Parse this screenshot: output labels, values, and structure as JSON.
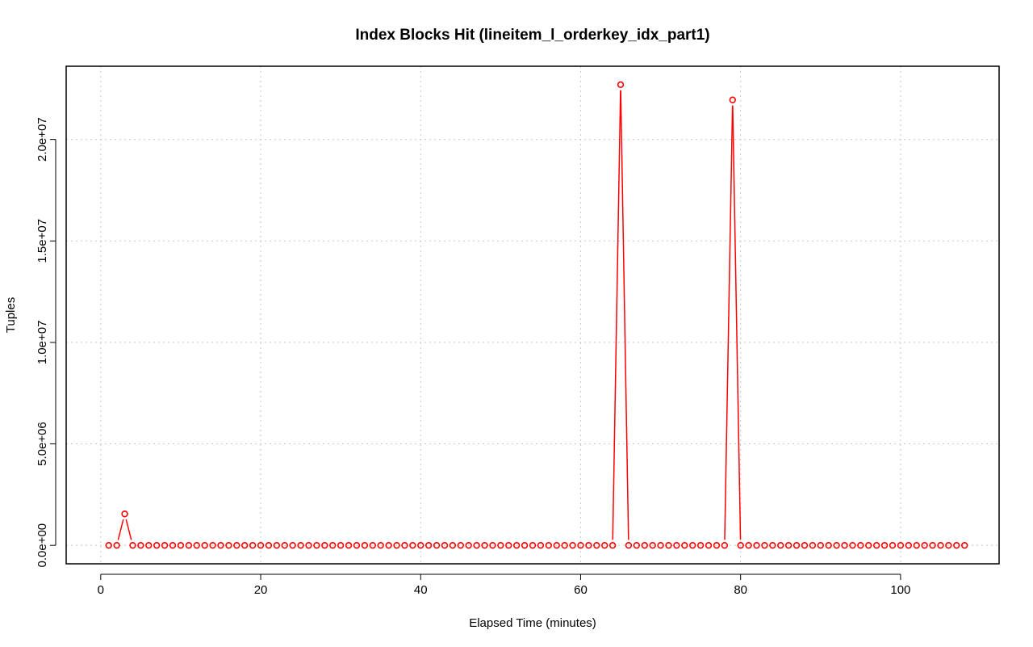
{
  "chart_data": {
    "type": "line",
    "title": "Index Blocks Hit (lineitem_l_orderkey_idx_part1)",
    "xlabel": "Elapsed Time (minutes)",
    "ylabel": "Tuples",
    "xlim": [
      -4.32,
      112.32
    ],
    "ylim": [
      -908000,
      23608000
    ],
    "x_ticks": [
      0,
      20,
      40,
      60,
      80,
      100
    ],
    "x_tick_labels": [
      "0",
      "20",
      "40",
      "60",
      "80",
      "100"
    ],
    "y_ticks": [
      0,
      5000000,
      10000000,
      15000000,
      20000000
    ],
    "y_tick_labels": [
      "0.0e+00",
      "5.0e+06",
      "1.0e+07",
      "1.5e+07",
      "2.0e+07"
    ],
    "grid": true,
    "legend": false,
    "color": "#ff0000",
    "series": [
      {
        "x_start": 1,
        "x_end": 108,
        "default_value": 0,
        "nonzero": [
          [
            3,
            1550000
          ],
          [
            65,
            22700000
          ],
          [
            79,
            21950000
          ]
        ]
      }
    ]
  }
}
